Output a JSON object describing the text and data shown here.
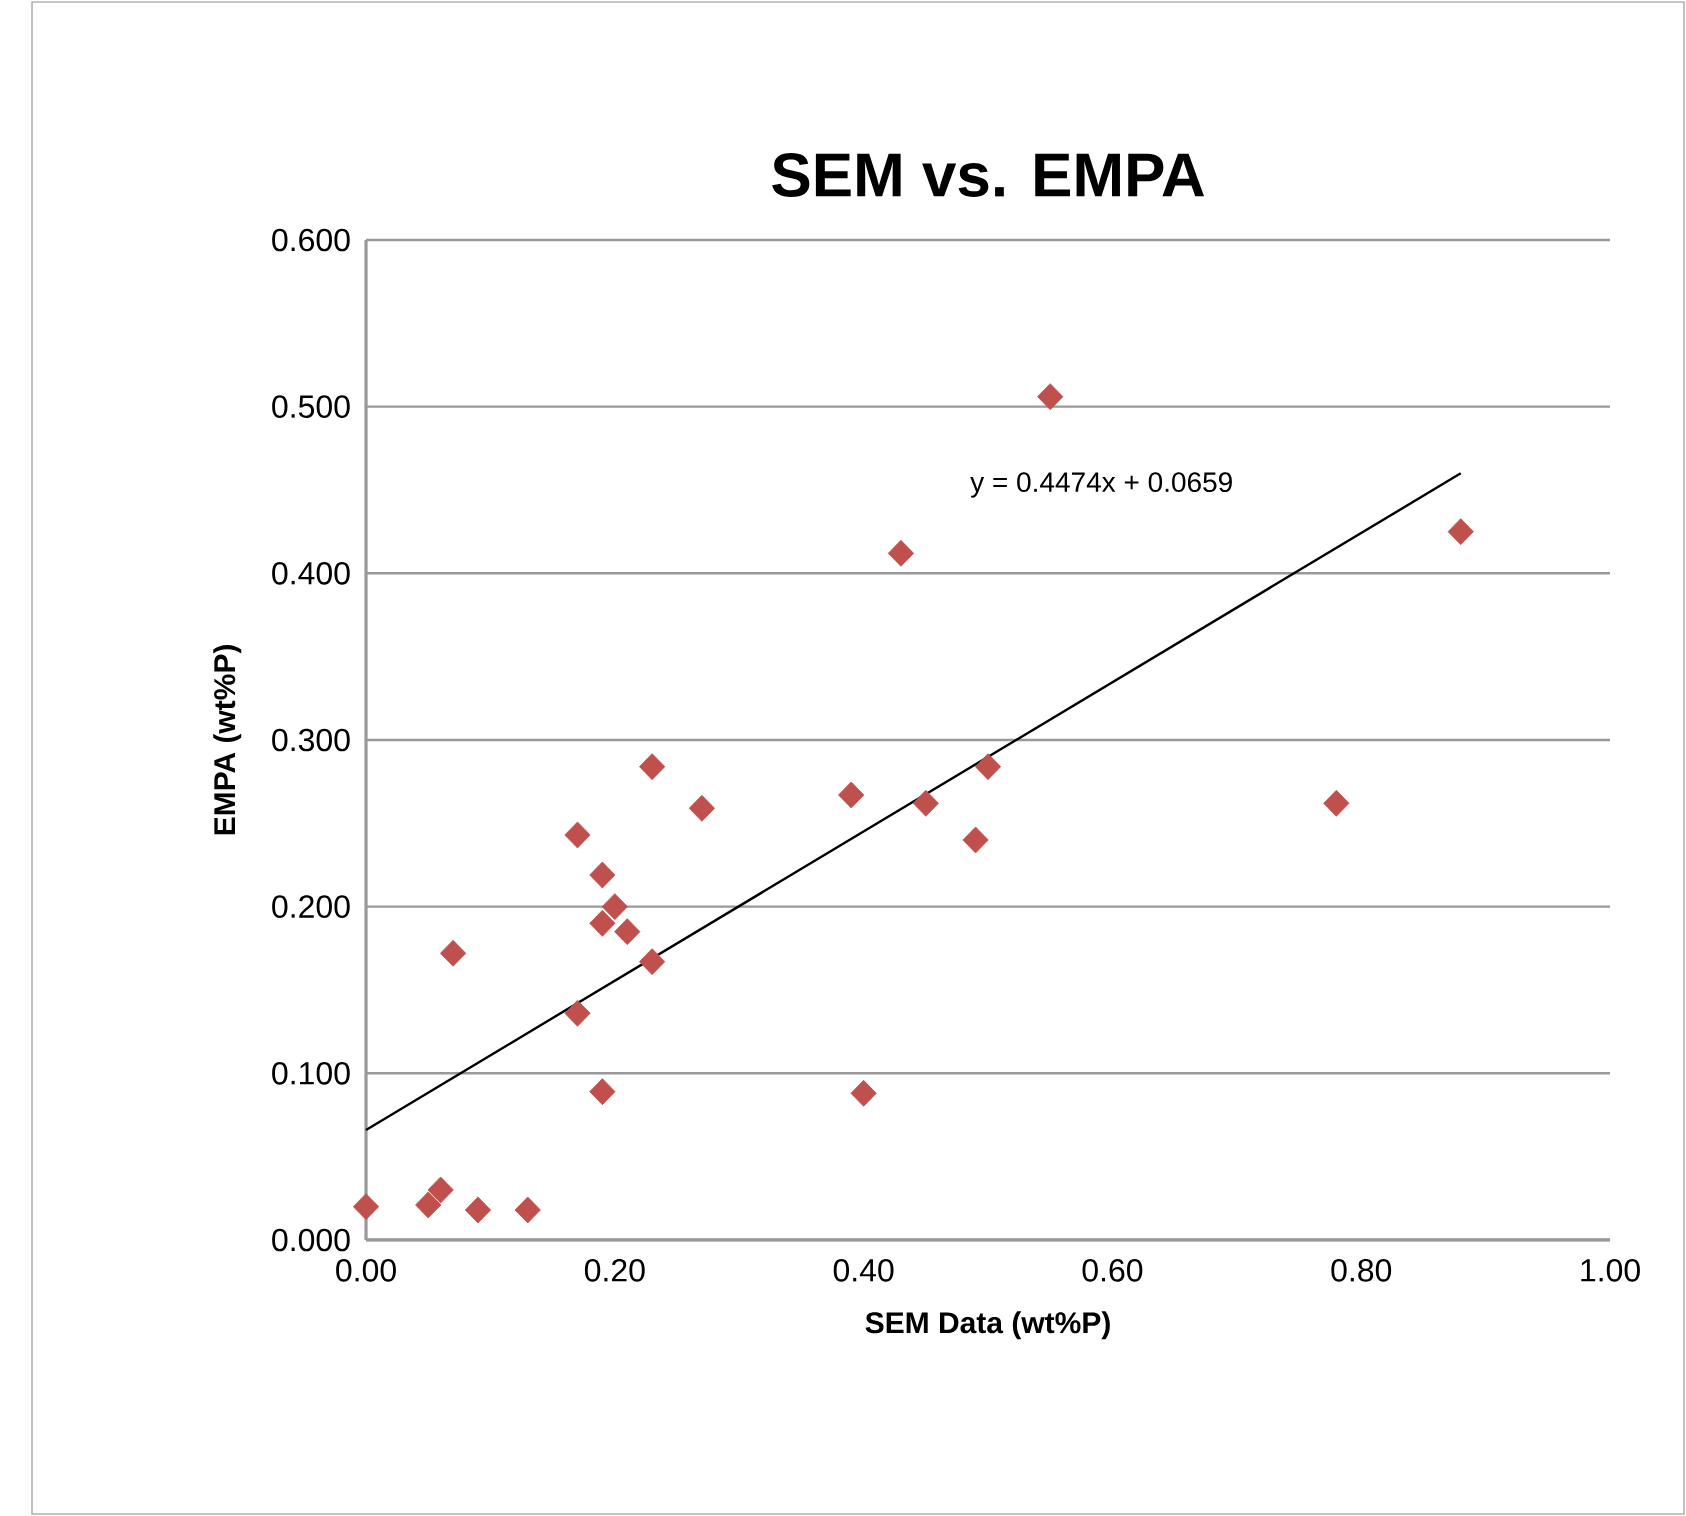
{
  "chart_data": {
    "type": "scatter",
    "title": "SEM vs. EMPA",
    "xlabel": "SEM Data (wt%P)",
    "ylabel": "EMPA (wt%P)",
    "annotations": [
      "y = 0.4474x + 0.0659"
    ],
    "xlim": [
      0,
      1
    ],
    "ylim": [
      0,
      0.6
    ],
    "xticks": [
      {
        "value": 0,
        "label": "0.00"
      },
      {
        "value": 0.2,
        "label": "0.20"
      },
      {
        "value": 0.4,
        "label": "0.40"
      },
      {
        "value": 0.6,
        "label": "0.60"
      },
      {
        "value": 0.8,
        "label": "0.80"
      },
      {
        "value": 1,
        "label": "1.00"
      }
    ],
    "yticks": [
      {
        "value": 0,
        "label": "0.000"
      },
      {
        "value": 0.1,
        "label": "0.100"
      },
      {
        "value": 0.2,
        "label": "0.200"
      },
      {
        "value": 0.3,
        "label": "0.300"
      },
      {
        "value": 0.4,
        "label": "0.400"
      },
      {
        "value": 0.5,
        "label": "0.500"
      },
      {
        "value": 0.6,
        "label": "0.600"
      }
    ],
    "grid": "y",
    "series": [
      {
        "marker": "diamond",
        "color": "#c0504d",
        "x": [
          0.0,
          0.05,
          0.06,
          0.09,
          0.13,
          0.07,
          0.17,
          0.17,
          0.19,
          0.19,
          0.2,
          0.21,
          0.19,
          0.23,
          0.23,
          0.27,
          0.39,
          0.4,
          0.43,
          0.45,
          0.49,
          0.5,
          0.55,
          0.78,
          0.88
        ],
        "values": [
          0.02,
          0.021,
          0.03,
          0.018,
          0.018,
          0.172,
          0.136,
          0.243,
          0.219,
          0.19,
          0.2,
          0.185,
          0.089,
          0.167,
          0.284,
          0.259,
          0.267,
          0.088,
          0.412,
          0.262,
          0.24,
          0.284,
          0.506,
          0.262,
          0.425
        ]
      },
      {
        "type": "line",
        "marker": "none",
        "line_style": "solid",
        "color": "#000000",
        "x": [
          0,
          0.88
        ],
        "values": [
          0.066,
          0.46
        ]
      }
    ]
  }
}
